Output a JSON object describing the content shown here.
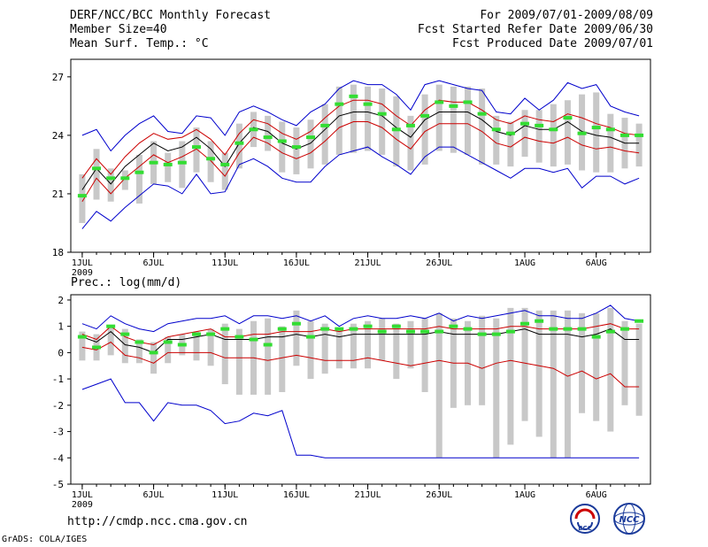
{
  "header": {
    "title": "DERF/NCC/BCC Monthly Forecast",
    "member_size": "Member Size=40",
    "variable": "Mean Surf. Temp.: °C",
    "period": "For 2009/07/01-2009/08/09",
    "fcst_started": "Fcst Started Refer Date 2009/06/30",
    "fcst_produced": "Fcst Produced Date 2009/07/01"
  },
  "footer": {
    "url": "http://cmdp.ncc.cma.gov.cn",
    "credit": "GrADS: COLA/IGES",
    "logo_left_text": "BCC",
    "logo_right_text": "NCC"
  },
  "colors": {
    "ensemble_envelope": "#0000cc",
    "ensemble_spread": "#cc0000",
    "ensemble_mean": "#000000",
    "climatology_marker": "#33dd33",
    "member_range_bar": "#c8c8c8"
  },
  "chart_data": [
    {
      "type": "line",
      "title": "Mean Surf. Temp.: °C",
      "x": [
        1,
        2,
        3,
        4,
        5,
        6,
        7,
        8,
        9,
        10,
        11,
        12,
        13,
        14,
        15,
        16,
        17,
        18,
        19,
        20,
        21,
        22,
        23,
        24,
        25,
        26,
        27,
        28,
        29,
        30,
        31,
        32,
        33,
        34,
        35,
        36,
        37,
        38,
        39,
        40
      ],
      "x_tick_labels": [
        "1JUL",
        "6JUL",
        "11JUL",
        "16JUL",
        "21JUL",
        "26JUL",
        "1AUG",
        "6AUG"
      ],
      "x_tick_positions": [
        1,
        6,
        11,
        16,
        21,
        26,
        32,
        37
      ],
      "x_sublabel": "2009",
      "ylim": [
        18,
        27.9
      ],
      "y_ticks": [
        18,
        21,
        24,
        27
      ],
      "series": [
        {
          "name": "ensemble max",
          "values": [
            24.0,
            24.3,
            23.2,
            24.0,
            24.6,
            25.0,
            24.2,
            24.1,
            25.0,
            24.9,
            24.0,
            25.2,
            25.5,
            25.2,
            24.8,
            24.5,
            25.2,
            25.6,
            26.4,
            26.8,
            26.6,
            26.6,
            26.1,
            25.3,
            26.6,
            26.8,
            26.6,
            26.4,
            26.3,
            25.2,
            25.1,
            25.9,
            25.3,
            25.8,
            26.7,
            26.4,
            26.6,
            25.5,
            25.2,
            25.0
          ]
        },
        {
          "name": "spread upper",
          "values": [
            21.8,
            22.8,
            22.0,
            22.9,
            23.6,
            24.1,
            23.8,
            23.9,
            24.3,
            23.8,
            23.0,
            24.1,
            24.8,
            24.6,
            24.1,
            23.8,
            24.2,
            24.9,
            25.5,
            25.8,
            25.8,
            25.6,
            25.0,
            24.5,
            25.3,
            25.8,
            25.7,
            25.7,
            25.3,
            24.8,
            24.6,
            25.0,
            24.8,
            24.7,
            25.1,
            24.9,
            24.6,
            24.4,
            24.1,
            24.0
          ]
        },
        {
          "name": "ensemble mean",
          "values": [
            21.2,
            22.3,
            21.5,
            22.4,
            23.0,
            23.6,
            23.2,
            23.4,
            23.9,
            23.3,
            22.4,
            23.6,
            24.4,
            24.2,
            23.6,
            23.3,
            23.6,
            24.3,
            25.0,
            25.2,
            25.2,
            25.0,
            24.4,
            23.9,
            24.8,
            25.2,
            25.2,
            25.2,
            24.8,
            24.2,
            24.0,
            24.5,
            24.3,
            24.3,
            24.7,
            24.2,
            24.0,
            23.9,
            23.6,
            23.6
          ]
        },
        {
          "name": "spread lower",
          "values": [
            20.6,
            21.8,
            21.0,
            21.8,
            22.4,
            23.0,
            22.6,
            22.9,
            23.3,
            22.7,
            21.9,
            23.1,
            23.9,
            23.6,
            23.1,
            22.8,
            23.1,
            23.7,
            24.4,
            24.7,
            24.7,
            24.4,
            23.8,
            23.3,
            24.2,
            24.6,
            24.6,
            24.6,
            24.2,
            23.6,
            23.4,
            23.9,
            23.7,
            23.6,
            23.9,
            23.5,
            23.3,
            23.4,
            23.2,
            23.1
          ]
        },
        {
          "name": "ensemble min",
          "values": [
            19.2,
            20.1,
            19.6,
            20.3,
            20.9,
            21.5,
            21.4,
            21.0,
            22.0,
            21.0,
            21.1,
            22.5,
            22.8,
            22.4,
            21.8,
            21.6,
            21.6,
            22.4,
            23.0,
            23.2,
            23.4,
            22.9,
            22.5,
            22.0,
            22.9,
            23.4,
            23.4,
            23.0,
            22.6,
            22.2,
            21.8,
            22.3,
            22.3,
            22.1,
            22.3,
            21.3,
            21.9,
            21.9,
            21.5,
            21.8
          ]
        },
        {
          "name": "climatology",
          "values": [
            20.9,
            22.3,
            21.8,
            21.8,
            22.1,
            22.6,
            22.5,
            22.6,
            23.4,
            22.8,
            22.5,
            23.6,
            24.3,
            23.9,
            23.7,
            23.4,
            23.9,
            24.5,
            25.6,
            26.0,
            25.6,
            25.1,
            24.3,
            24.5,
            25.0,
            25.7,
            25.5,
            25.7,
            25.1,
            24.3,
            24.1,
            24.6,
            24.5,
            24.3,
            24.9,
            24.1,
            24.4,
            24.3,
            24.0,
            24.0
          ]
        },
        {
          "name": "member range top",
          "values": [
            22.0,
            23.3,
            22.3,
            22.2,
            23.0,
            23.7,
            23.1,
            23.7,
            24.4,
            23.7,
            23.1,
            24.6,
            25.2,
            25.0,
            24.7,
            24.4,
            24.8,
            25.6,
            26.5,
            26.6,
            26.5,
            26.4,
            26.0,
            25.0,
            26.1,
            26.6,
            26.5,
            26.5,
            26.4,
            25.0,
            24.7,
            25.3,
            25.3,
            25.6,
            25.8,
            26.1,
            26.2,
            25.1,
            24.9,
            24.6
          ]
        },
        {
          "name": "member range bottom",
          "values": [
            19.5,
            20.7,
            20.6,
            21.2,
            20.5,
            21.5,
            21.6,
            21.3,
            22.1,
            21.6,
            21.2,
            22.3,
            23.4,
            23.2,
            22.1,
            22.0,
            22.3,
            22.5,
            23.0,
            23.1,
            23.2,
            23.0,
            22.4,
            22.2,
            22.5,
            23.2,
            23.1,
            23.0,
            22.5,
            22.5,
            22.4,
            22.9,
            22.6,
            22.4,
            22.5,
            22.2,
            22.1,
            22.1,
            22.3,
            22.4
          ]
        }
      ]
    },
    {
      "type": "line",
      "title": "Prec.: log(mm/d)",
      "x": [
        1,
        2,
        3,
        4,
        5,
        6,
        7,
        8,
        9,
        10,
        11,
        12,
        13,
        14,
        15,
        16,
        17,
        18,
        19,
        20,
        21,
        22,
        23,
        24,
        25,
        26,
        27,
        28,
        29,
        30,
        31,
        32,
        33,
        34,
        35,
        36,
        37,
        38,
        39,
        40
      ],
      "x_tick_labels": [
        "1JUL",
        "6JUL",
        "11JUL",
        "16JUL",
        "21JUL",
        "26JUL",
        "1AUG",
        "6AUG"
      ],
      "x_tick_positions": [
        1,
        6,
        11,
        16,
        21,
        26,
        32,
        37
      ],
      "x_sublabel": "2009",
      "ylim": [
        -5,
        2.2
      ],
      "y_ticks": [
        -5,
        -4,
        -3,
        -2,
        -1,
        0,
        1,
        2
      ],
      "series": [
        {
          "name": "ensemble max",
          "values": [
            1.1,
            0.9,
            1.4,
            1.1,
            0.9,
            0.8,
            1.1,
            1.2,
            1.3,
            1.3,
            1.4,
            1.1,
            1.4,
            1.4,
            1.3,
            1.4,
            1.2,
            1.4,
            1.0,
            1.3,
            1.4,
            1.3,
            1.3,
            1.4,
            1.3,
            1.5,
            1.2,
            1.4,
            1.3,
            1.4,
            1.5,
            1.6,
            1.4,
            1.4,
            1.3,
            1.3,
            1.5,
            1.8,
            1.3,
            1.2
          ]
        },
        {
          "name": "spread upper",
          "values": [
            0.7,
            0.5,
            1.0,
            0.6,
            0.4,
            0.3,
            0.6,
            0.7,
            0.8,
            0.9,
            0.6,
            0.6,
            0.7,
            0.7,
            0.8,
            0.8,
            0.8,
            0.9,
            0.8,
            0.9,
            0.9,
            0.9,
            0.9,
            0.9,
            0.9,
            1.0,
            0.9,
            0.9,
            0.9,
            0.9,
            1.0,
            1.0,
            0.9,
            0.9,
            0.9,
            0.9,
            1.0,
            1.1,
            0.9,
            0.9
          ]
        },
        {
          "name": "ensemble mean",
          "values": [
            0.6,
            0.4,
            0.8,
            0.3,
            0.2,
            0.0,
            0.5,
            0.5,
            0.6,
            0.7,
            0.5,
            0.5,
            0.5,
            0.6,
            0.6,
            0.7,
            0.6,
            0.7,
            0.6,
            0.7,
            0.7,
            0.7,
            0.7,
            0.7,
            0.7,
            0.8,
            0.7,
            0.7,
            0.7,
            0.7,
            0.8,
            0.9,
            0.7,
            0.7,
            0.7,
            0.6,
            0.7,
            0.9,
            0.5,
            0.5
          ]
        },
        {
          "name": "spread lower",
          "values": [
            0.2,
            0.1,
            0.4,
            -0.1,
            -0.2,
            -0.4,
            0.0,
            0.0,
            0.0,
            0.0,
            -0.2,
            -0.2,
            -0.2,
            -0.3,
            -0.2,
            -0.1,
            -0.2,
            -0.3,
            -0.3,
            -0.3,
            -0.2,
            -0.3,
            -0.4,
            -0.5,
            -0.4,
            -0.3,
            -0.4,
            -0.4,
            -0.6,
            -0.4,
            -0.3,
            -0.4,
            -0.5,
            -0.6,
            -0.9,
            -0.7,
            -1.0,
            -0.8,
            -1.3,
            -1.3
          ]
        },
        {
          "name": "ensemble min",
          "values": [
            -1.4,
            -1.2,
            -1.0,
            -1.9,
            -1.9,
            -2.6,
            -1.9,
            -2.0,
            -2.0,
            -2.2,
            -2.7,
            -2.6,
            -2.3,
            -2.4,
            -2.2,
            -3.9,
            -3.9,
            -4.0,
            -4.0,
            -4.0,
            -4.0,
            -4.0,
            -4.0,
            -4.0,
            -4.0,
            -4.0,
            -4.0,
            -4.0,
            -4.0,
            -4.0,
            -4.0,
            -4.0,
            -4.0,
            -4.0,
            -4.0,
            -4.0,
            -4.0,
            -4.0,
            -4.0,
            -4.0
          ]
        },
        {
          "name": "climatology",
          "values": [
            0.6,
            0.2,
            1.0,
            0.7,
            0.4,
            0.0,
            0.4,
            0.3,
            0.7,
            0.7,
            0.9,
            0.6,
            0.5,
            0.3,
            0.9,
            1.1,
            0.6,
            0.9,
            0.9,
            0.9,
            1.0,
            0.8,
            1.0,
            0.8,
            0.8,
            0.8,
            1.0,
            0.9,
            0.7,
            0.7,
            0.8,
            1.1,
            1.2,
            0.9,
            0.9,
            0.9,
            0.6,
            0.8,
            0.9,
            1.2
          ]
        },
        {
          "name": "member range top",
          "values": [
            0.8,
            0.7,
            1.0,
            0.9,
            0.5,
            0.4,
            0.6,
            0.7,
            0.8,
            0.9,
            1.1,
            0.9,
            1.2,
            1.3,
            1.0,
            1.6,
            1.2,
            1.1,
            0.9,
            1.1,
            1.2,
            1.3,
            1.1,
            1.2,
            1.3,
            1.5,
            1.3,
            1.2,
            1.4,
            1.3,
            1.7,
            1.7,
            1.6,
            1.6,
            1.6,
            1.5,
            1.5,
            1.7,
            1.2,
            1.1
          ]
        },
        {
          "name": "member range bottom",
          "values": [
            -0.3,
            -0.3,
            -0.1,
            -0.4,
            -0.4,
            -0.8,
            -0.4,
            -0.1,
            -0.3,
            -0.5,
            -1.2,
            -1.6,
            -1.6,
            -1.6,
            -1.5,
            -0.5,
            -1.0,
            -0.8,
            -0.6,
            -0.6,
            -0.6,
            -0.3,
            -1.0,
            -0.6,
            -1.5,
            -4.0,
            -2.1,
            -2.0,
            -2.0,
            -4.0,
            -3.5,
            -2.6,
            -3.2,
            -4.0,
            -4.0,
            -2.3,
            -2.6,
            -3.0,
            -2.0,
            -2.4
          ]
        }
      ]
    }
  ]
}
